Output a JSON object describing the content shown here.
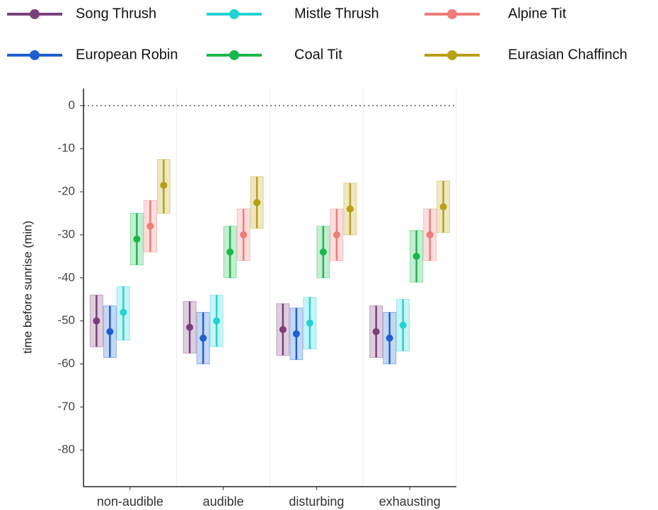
{
  "chart_data": {
    "type": "interval",
    "y_label": "time before sunrise (min)",
    "categories": [
      "non-audible",
      "audible",
      "disturbing",
      "exhausting"
    ],
    "ylim": [
      -88.5,
      4
    ],
    "yticks": [
      0,
      -10,
      -20,
      -30,
      -40,
      -50,
      -60,
      -70,
      -80
    ],
    "reference_line": 0,
    "grid": true,
    "series": [
      {
        "name": "Song Thrush",
        "color": "#7a3f7c",
        "values": [
          -50,
          -51.5,
          -52,
          -52.5
        ],
        "lower": [
          -56,
          -57.5,
          -58,
          -58.5
        ],
        "upper": [
          -44,
          -45.5,
          -46,
          -46.5
        ]
      },
      {
        "name": "European Robin",
        "color": "#1c5fd0",
        "values": [
          -52.5,
          -54,
          -53,
          -54
        ],
        "lower": [
          -58.5,
          -60,
          -59,
          -60
        ],
        "upper": [
          -46.5,
          -48,
          -47,
          -48
        ]
      },
      {
        "name": "Mistle Thrush",
        "color": "#22d3d3",
        "values": [
          -48,
          -50,
          -50.5,
          -51
        ],
        "lower": [
          -54.5,
          -56,
          -56.5,
          -57
        ],
        "upper": [
          -42,
          -44,
          -44.5,
          -45
        ]
      },
      {
        "name": "Coal Tit",
        "color": "#19b84a",
        "values": [
          -31,
          -34,
          -34,
          -35
        ],
        "lower": [
          -37,
          -40,
          -40,
          -41
        ],
        "upper": [
          -25,
          -28,
          -28,
          -29
        ]
      },
      {
        "name": "Alpine Tit",
        "color": "#f07b78",
        "values": [
          -28,
          -30,
          -30,
          -30
        ],
        "lower": [
          -34,
          -36,
          -36,
          -36
        ],
        "upper": [
          -22,
          -24,
          -24,
          -24
        ]
      },
      {
        "name": "Eurasian Chaffinch",
        "color": "#b9a014",
        "values": [
          -18.5,
          -22.5,
          -24,
          -23.5
        ],
        "lower": [
          -25,
          -28.5,
          -30,
          -29.5
        ],
        "upper": [
          -12.5,
          -16.5,
          -18,
          -17.5
        ]
      }
    ]
  }
}
